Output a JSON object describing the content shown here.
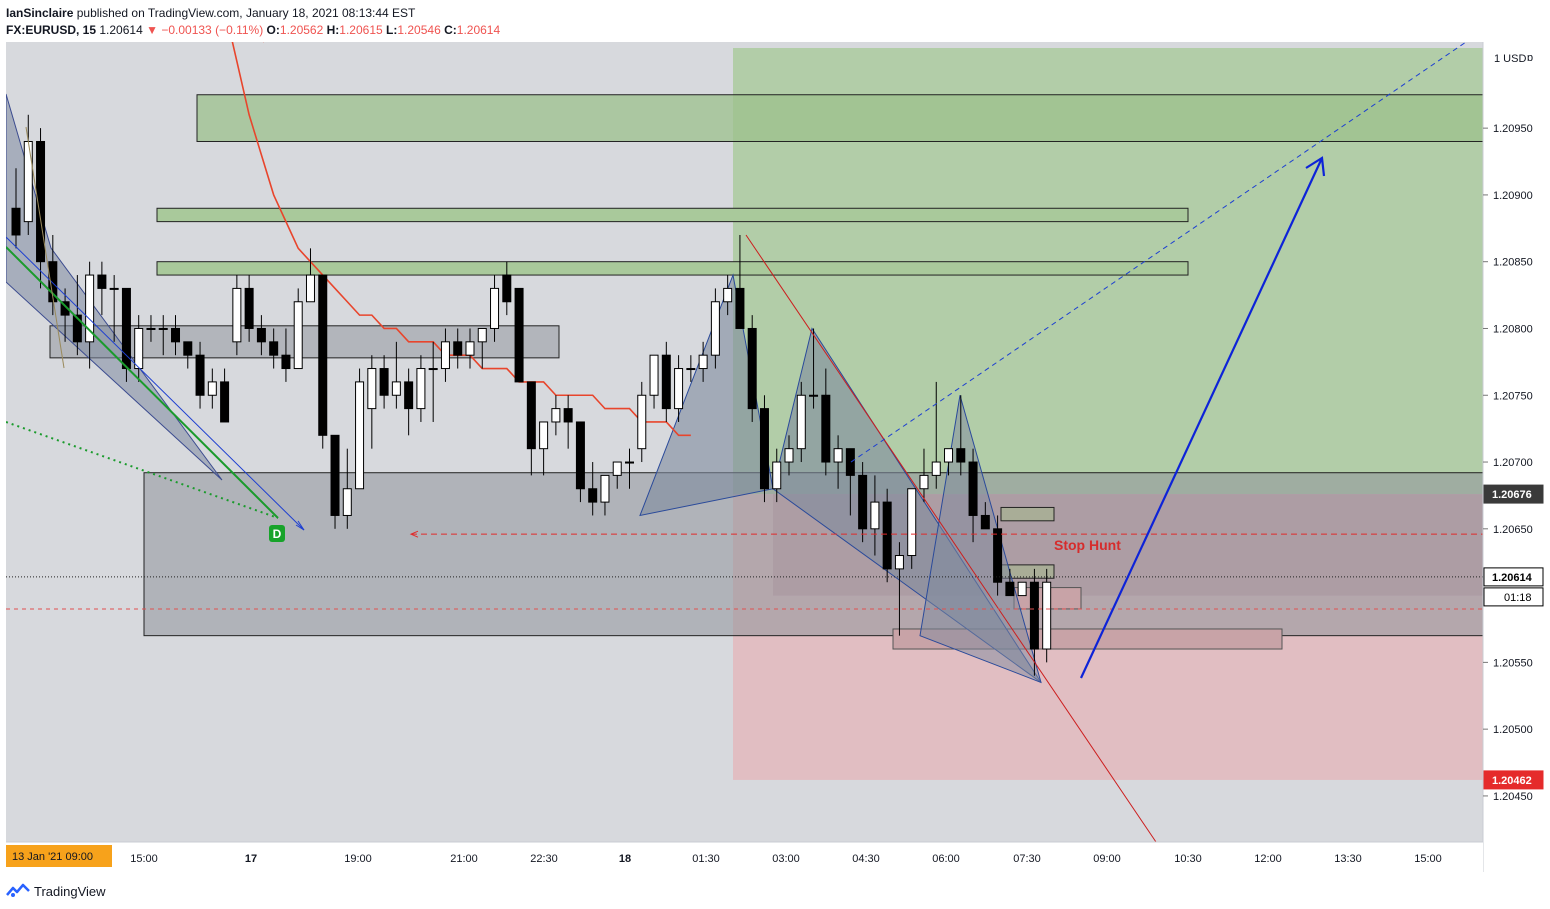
{
  "header": {
    "author": "IanSinclaire",
    "published_text": "published on TradingView.com, January 18, 2021 08:13:44 EST",
    "symbol": "FX:EURUSD, 15",
    "last": "1.20614",
    "change": "−0.00133 (−0.11%)",
    "o_label": "O:",
    "o_value": "1.20562",
    "h_label": "H:",
    "h_value": "1.20615",
    "l_label": "L:",
    "l_value": "1.20546",
    "c_label": "C:",
    "c_value": "1.20614"
  },
  "footer": {
    "brand": "TradingView"
  },
  "colors": {
    "background": "#d7d9dd",
    "up_candle": "#ffffff",
    "down_candle": "#000000",
    "ma_line": "#e8452c",
    "target_zone": "#a9c99b",
    "stop_zone": "#e3b8bd",
    "pattern_fill": "#7f8a9e",
    "arrow": "#0d23d8",
    "accent_orange": "#f7a21b"
  },
  "chart_data": {
    "type": "candlestick",
    "symbol": "FX:EURUSD",
    "interval": "15",
    "currency": "USD",
    "y_axis_ticks": [
      "1.20950",
      "1.20900",
      "1.20850",
      "1.20800",
      "1.20750",
      "1.20700",
      "1.20650",
      "1.20550",
      "1.20500",
      "1.20450"
    ],
    "x_axis_ticks": [
      "15:00",
      "17",
      "19:00",
      "21:00",
      "22:30",
      "18",
      "01:30",
      "03:00",
      "04:30",
      "06:00",
      "07:30",
      "09:00",
      "10:30",
      "12:00",
      "13:30",
      "15:00"
    ],
    "x_axis_start_badge": "13 Jan '21  09:00",
    "price_badges": [
      {
        "value": "1.20676",
        "style": "dark"
      },
      {
        "value": "1.20614",
        "style": "current"
      },
      {
        "value": "01:18",
        "style": "countdown"
      },
      {
        "value": "1.20462",
        "style": "red"
      }
    ],
    "axis_top_label": "1 USD",
    "annotations": {
      "stop_hunt_label": "Stop Hunt",
      "divergence_marker": "D"
    },
    "ylim": [
      1.2042,
      1.2101
    ],
    "candles": [
      {
        "o": 1.2089,
        "h": 1.2092,
        "l": 1.2086,
        "c": 1.2087
      },
      {
        "o": 1.2088,
        "h": 1.2096,
        "l": 1.2087,
        "c": 1.2094
      },
      {
        "o": 1.2094,
        "h": 1.2095,
        "l": 1.2083,
        "c": 1.2085
      },
      {
        "o": 1.2085,
        "h": 1.2087,
        "l": 1.2081,
        "c": 1.2082
      },
      {
        "o": 1.2082,
        "h": 1.2083,
        "l": 1.2079,
        "c": 1.2081
      },
      {
        "o": 1.2081,
        "h": 1.2084,
        "l": 1.2078,
        "c": 1.2079
      },
      {
        "o": 1.2079,
        "h": 1.2085,
        "l": 1.2077,
        "c": 1.2084
      },
      {
        "o": 1.2084,
        "h": 1.2085,
        "l": 1.2081,
        "c": 1.2083
      },
      {
        "o": 1.2083,
        "h": 1.2084,
        "l": 1.2079,
        "c": 1.2083
      },
      {
        "o": 1.2083,
        "h": 1.2083,
        "l": 1.2076,
        "c": 1.2077
      },
      {
        "o": 1.2077,
        "h": 1.2081,
        "l": 1.2076,
        "c": 1.208
      },
      {
        "o": 1.208,
        "h": 1.2081,
        "l": 1.2079,
        "c": 1.208
      },
      {
        "o": 1.208,
        "h": 1.2081,
        "l": 1.2078,
        "c": 1.208
      },
      {
        "o": 1.208,
        "h": 1.2081,
        "l": 1.2078,
        "c": 1.2079
      },
      {
        "o": 1.2079,
        "h": 1.2079,
        "l": 1.2077,
        "c": 1.2078
      },
      {
        "o": 1.2078,
        "h": 1.2079,
        "l": 1.2074,
        "c": 1.2075
      },
      {
        "o": 1.2075,
        "h": 1.2077,
        "l": 1.2074,
        "c": 1.2076
      },
      {
        "o": 1.2076,
        "h": 1.2077,
        "l": 1.2073,
        "c": 1.2073
      },
      {
        "o": 1.2079,
        "h": 1.2084,
        "l": 1.2078,
        "c": 1.2083
      },
      {
        "o": 1.2083,
        "h": 1.2084,
        "l": 1.2079,
        "c": 1.208
      },
      {
        "o": 1.208,
        "h": 1.2081,
        "l": 1.2078,
        "c": 1.2079
      },
      {
        "o": 1.2079,
        "h": 1.208,
        "l": 1.2077,
        "c": 1.2078
      },
      {
        "o": 1.2078,
        "h": 1.208,
        "l": 1.2076,
        "c": 1.2077
      },
      {
        "o": 1.2077,
        "h": 1.2083,
        "l": 1.2077,
        "c": 1.2082
      },
      {
        "o": 1.2082,
        "h": 1.2086,
        "l": 1.2082,
        "c": 1.2084
      },
      {
        "o": 1.2084,
        "h": 1.2084,
        "l": 1.2071,
        "c": 1.2072
      },
      {
        "o": 1.2072,
        "h": 1.2072,
        "l": 1.2065,
        "c": 1.2066
      },
      {
        "o": 1.2066,
        "h": 1.2071,
        "l": 1.2065,
        "c": 1.2068
      },
      {
        "o": 1.2068,
        "h": 1.2077,
        "l": 1.2068,
        "c": 1.2076
      },
      {
        "o": 1.2074,
        "h": 1.2078,
        "l": 1.2071,
        "c": 1.2077
      },
      {
        "o": 1.2077,
        "h": 1.2078,
        "l": 1.2074,
        "c": 1.2075
      },
      {
        "o": 1.2075,
        "h": 1.2079,
        "l": 1.2074,
        "c": 1.2076
      },
      {
        "o": 1.2076,
        "h": 1.2077,
        "l": 1.2072,
        "c": 1.2074
      },
      {
        "o": 1.2074,
        "h": 1.2078,
        "l": 1.2073,
        "c": 1.2077
      },
      {
        "o": 1.2077,
        "h": 1.2079,
        "l": 1.2073,
        "c": 1.2077
      },
      {
        "o": 1.2077,
        "h": 1.208,
        "l": 1.2076,
        "c": 1.2079
      },
      {
        "o": 1.2079,
        "h": 1.208,
        "l": 1.2077,
        "c": 1.2078
      },
      {
        "o": 1.2078,
        "h": 1.208,
        "l": 1.2077,
        "c": 1.2079
      },
      {
        "o": 1.2079,
        "h": 1.208,
        "l": 1.2077,
        "c": 1.208
      },
      {
        "o": 1.208,
        "h": 1.2084,
        "l": 1.2079,
        "c": 1.2083
      },
      {
        "o": 1.2084,
        "h": 1.2085,
        "l": 1.2081,
        "c": 1.2082
      },
      {
        "o": 1.2083,
        "h": 1.2083,
        "l": 1.2076,
        "c": 1.2076
      },
      {
        "o": 1.2076,
        "h": 1.2076,
        "l": 1.2069,
        "c": 1.2071
      },
      {
        "o": 1.2071,
        "h": 1.2073,
        "l": 1.2069,
        "c": 1.2073
      },
      {
        "o": 1.2073,
        "h": 1.2075,
        "l": 1.2072,
        "c": 1.2074
      },
      {
        "o": 1.2074,
        "h": 1.2075,
        "l": 1.2071,
        "c": 1.2073
      },
      {
        "o": 1.2073,
        "h": 1.2073,
        "l": 1.2067,
        "c": 1.2068
      },
      {
        "o": 1.2068,
        "h": 1.207,
        "l": 1.2066,
        "c": 1.2067
      },
      {
        "o": 1.2067,
        "h": 1.2069,
        "l": 1.2066,
        "c": 1.2069
      },
      {
        "o": 1.2069,
        "h": 1.207,
        "l": 1.2068,
        "c": 1.207
      },
      {
        "o": 1.207,
        "h": 1.2071,
        "l": 1.2068,
        "c": 1.207
      },
      {
        "o": 1.2071,
        "h": 1.2076,
        "l": 1.207,
        "c": 1.2075
      },
      {
        "o": 1.2075,
        "h": 1.2078,
        "l": 1.2074,
        "c": 1.2078
      },
      {
        "o": 1.2078,
        "h": 1.2079,
        "l": 1.2073,
        "c": 1.2074
      },
      {
        "o": 1.2074,
        "h": 1.2078,
        "l": 1.2073,
        "c": 1.2077
      },
      {
        "o": 1.2077,
        "h": 1.2078,
        "l": 1.2076,
        "c": 1.2077
      },
      {
        "o": 1.2077,
        "h": 1.2079,
        "l": 1.2076,
        "c": 1.2078
      },
      {
        "o": 1.2078,
        "h": 1.2083,
        "l": 1.2077,
        "c": 1.2082
      },
      {
        "o": 1.2082,
        "h": 1.2084,
        "l": 1.2081,
        "c": 1.2083
      },
      {
        "o": 1.2083,
        "h": 1.2087,
        "l": 1.208,
        "c": 1.208
      },
      {
        "o": 1.208,
        "h": 1.2081,
        "l": 1.2073,
        "c": 1.2074
      },
      {
        "o": 1.2074,
        "h": 1.2075,
        "l": 1.2067,
        "c": 1.2068
      },
      {
        "o": 1.2068,
        "h": 1.2071,
        "l": 1.2067,
        "c": 1.207
      },
      {
        "o": 1.207,
        "h": 1.2072,
        "l": 1.2069,
        "c": 1.2071
      },
      {
        "o": 1.2071,
        "h": 1.2076,
        "l": 1.207,
        "c": 1.2075
      },
      {
        "o": 1.2075,
        "h": 1.208,
        "l": 1.2074,
        "c": 1.2075
      },
      {
        "o": 1.2075,
        "h": 1.2077,
        "l": 1.2069,
        "c": 1.207
      },
      {
        "o": 1.207,
        "h": 1.2072,
        "l": 1.2068,
        "c": 1.2071
      },
      {
        "o": 1.2071,
        "h": 1.2071,
        "l": 1.2066,
        "c": 1.2069
      },
      {
        "o": 1.2069,
        "h": 1.207,
        "l": 1.2064,
        "c": 1.2065
      },
      {
        "o": 1.2065,
        "h": 1.2069,
        "l": 1.2063,
        "c": 1.2067
      },
      {
        "o": 1.2067,
        "h": 1.2068,
        "l": 1.2061,
        "c": 1.2062
      },
      {
        "o": 1.2062,
        "h": 1.2064,
        "l": 1.2057,
        "c": 1.2063
      },
      {
        "o": 1.2063,
        "h": 1.2068,
        "l": 1.2062,
        "c": 1.2068
      },
      {
        "o": 1.2068,
        "h": 1.2071,
        "l": 1.2067,
        "c": 1.2069
      },
      {
        "o": 1.2069,
        "h": 1.2076,
        "l": 1.2068,
        "c": 1.207
      },
      {
        "o": 1.207,
        "h": 1.2071,
        "l": 1.2069,
        "c": 1.2071
      },
      {
        "o": 1.2071,
        "h": 1.2075,
        "l": 1.2069,
        "c": 1.207
      },
      {
        "o": 1.207,
        "h": 1.2071,
        "l": 1.2064,
        "c": 1.2066
      },
      {
        "o": 1.2066,
        "h": 1.2067,
        "l": 1.2065,
        "c": 1.2065
      },
      {
        "o": 1.2065,
        "h": 1.2066,
        "l": 1.206,
        "c": 1.2061
      },
      {
        "o": 1.2061,
        "h": 1.2062,
        "l": 1.206,
        "c": 1.206
      },
      {
        "o": 1.206,
        "h": 1.2061,
        "l": 1.206,
        "c": 1.2061
      },
      {
        "o": 1.2061,
        "h": 1.2062,
        "l": 1.2054,
        "c": 1.2056
      },
      {
        "o": 1.2056,
        "h": 1.2062,
        "l": 1.2055,
        "c": 1.2061
      }
    ],
    "ma_line": [
      1.2108,
      1.2104,
      1.21,
      1.2096,
      1.2093,
      1.209,
      1.2088,
      1.2086,
      1.2085,
      1.2084,
      1.2083,
      1.2082,
      1.2081,
      1.2081,
      1.208,
      1.208,
      1.2079,
      1.2079,
      1.2079,
      1.2078,
      1.2078,
      1.2078,
      1.2077,
      1.2077,
      1.2077,
      1.2076,
      1.2076,
      1.2076,
      1.2075,
      1.2075,
      1.2075,
      1.2075,
      1.2074,
      1.2074,
      1.2074,
      1.2073,
      1.2073,
      1.2073,
      1.2072,
      1.2072
    ],
    "ma_start_index": 16,
    "levels": {
      "target_top": 1.2101,
      "target_entry": 1.20676,
      "stop_bottom": 1.20462,
      "supply_zone_1_top": 1.20975,
      "supply_zone_1_bottom": 1.2094,
      "supply_zone_2_top": 1.2089,
      "supply_zone_2_bottom": 1.2088,
      "supply_zone_3_top": 1.2085,
      "supply_zone_3_bottom": 1.2084,
      "demand_zone_top": 1.20692,
      "demand_zone_bottom": 1.2057,
      "range_box_top": 1.20802,
      "range_box_bottom": 1.20778,
      "stop_hunt_level": 1.20646,
      "current_price": 1.20614,
      "prev_close_level": 1.2059
    }
  }
}
